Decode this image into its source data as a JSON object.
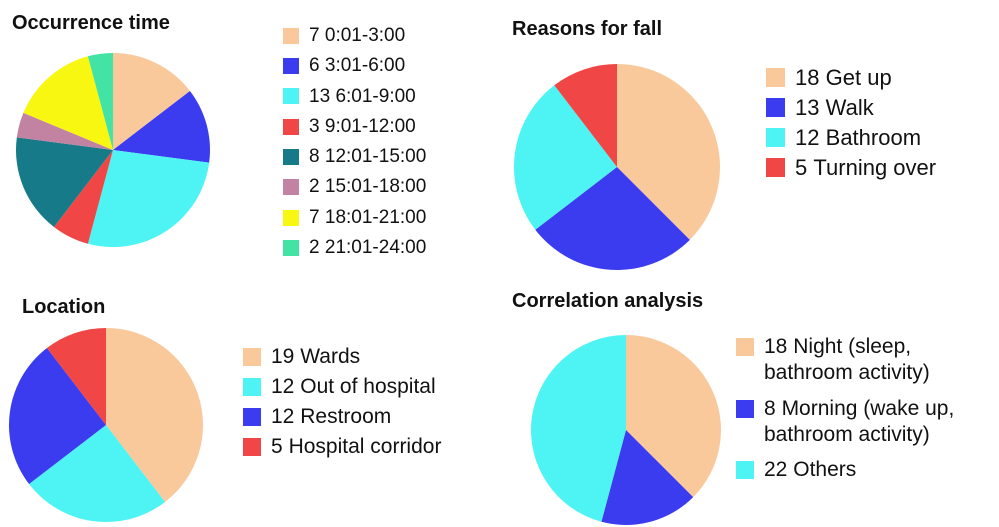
{
  "chart_data": [
    {
      "type": "pie",
      "title": "Occurrence time",
      "categories": [
        "0:01-3:00",
        "3:01-6:00",
        "6:01-9:00",
        "9:01-12:00",
        "12:01-15:00",
        "15:01-18:00",
        "18:01-21:00",
        "21:01-24:00"
      ],
      "values": [
        7,
        6,
        13,
        3,
        8,
        2,
        7,
        2
      ],
      "colors": [
        "#f9c99c",
        "#3b3bef",
        "#4ef3f3",
        "#f04646",
        "#167a88",
        "#c283a3",
        "#f7f712",
        "#42e3a4"
      ]
    },
    {
      "type": "pie",
      "title": "Reasons for fall",
      "categories": [
        "Get up",
        "Walk",
        "Bathroom",
        "Turning over"
      ],
      "values": [
        18,
        13,
        12,
        5
      ],
      "colors": [
        "#f9c99c",
        "#3b3bef",
        "#4ef3f3",
        "#f04646"
      ]
    },
    {
      "type": "pie",
      "title": "Location",
      "categories": [
        "Wards",
        "Out of hospital",
        "Restroom",
        "Hospital corridor"
      ],
      "values": [
        19,
        12,
        12,
        5
      ],
      "colors": [
        "#f9c99c",
        "#4ef3f3",
        "#3b3bef",
        "#f04646"
      ]
    },
    {
      "type": "pie",
      "title": "Correlation analysis",
      "categories": [
        "Night (sleep, bathroom activity)",
        "Morning (wake up, bathroom activity)",
        "Others"
      ],
      "values": [
        18,
        8,
        22
      ],
      "colors": [
        "#f9c99c",
        "#3b3bef",
        "#4ef3f3"
      ]
    }
  ]
}
